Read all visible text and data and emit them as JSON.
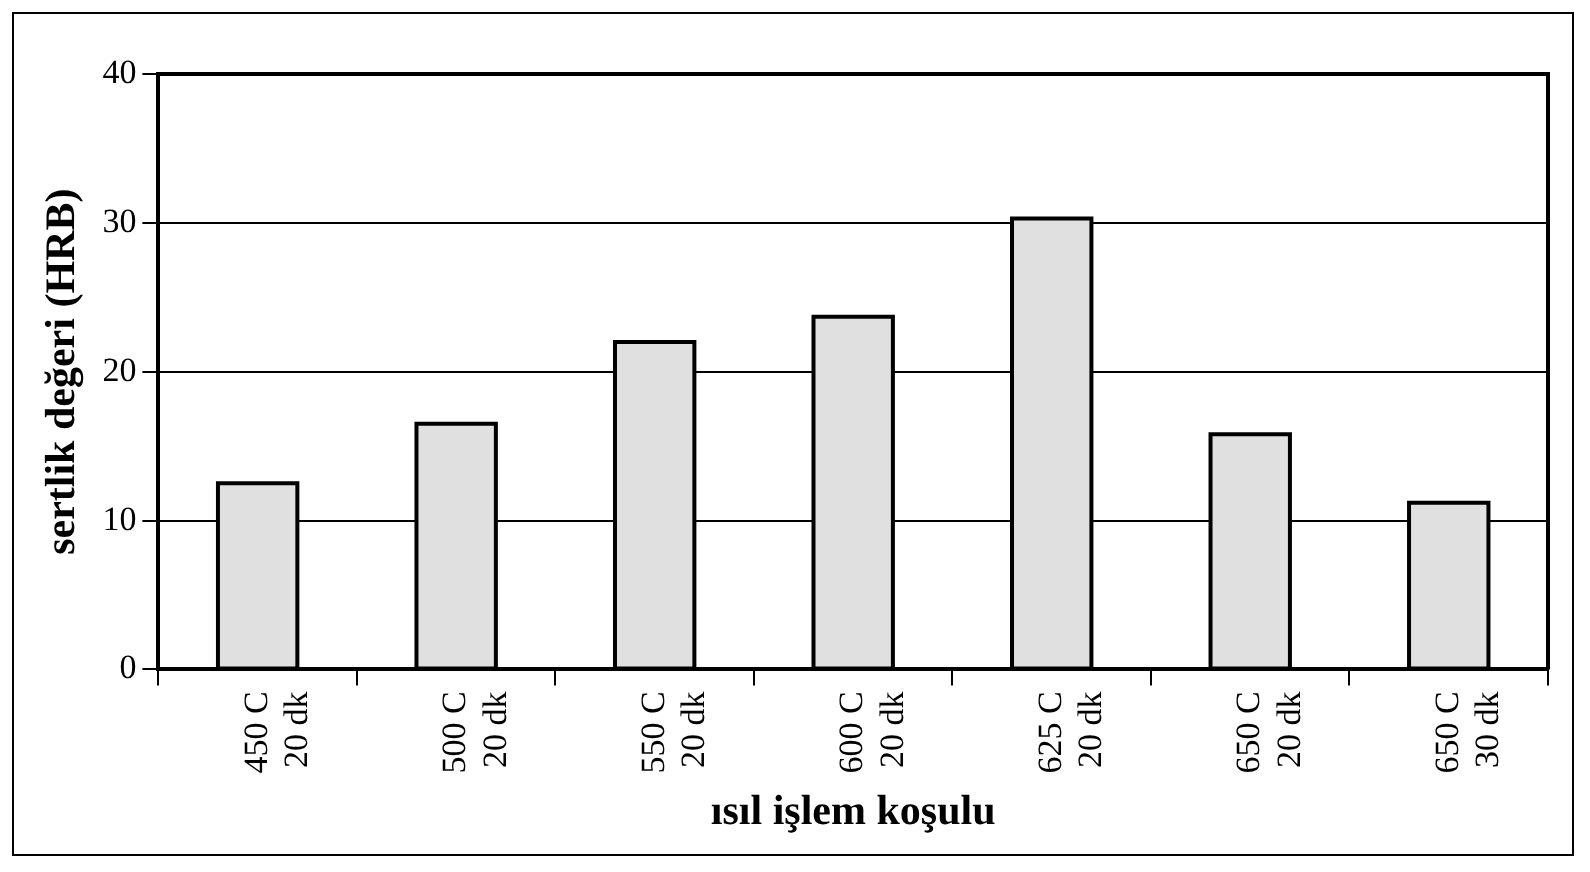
{
  "chart_data": {
    "type": "bar",
    "xlabel": "ısıl işlem koşulu",
    "ylabel": "sertlik değeri (HRB)",
    "categories": [
      "450 C\n20 dk",
      "500 C\n20 dk",
      "550 C\n20 dk",
      "600 C\n20 dk",
      "625 C\n20 dk",
      "650 C\n20 dk",
      "650 C\n30 dk"
    ],
    "values": [
      12.5,
      16.5,
      22.0,
      23.7,
      30.3,
      15.8,
      11.2
    ],
    "color": "#e0e0e0",
    "ylim": [
      0,
      40
    ],
    "yticks": [
      0,
      10,
      20,
      30,
      40
    ],
    "grid": "y",
    "legend": false
  }
}
